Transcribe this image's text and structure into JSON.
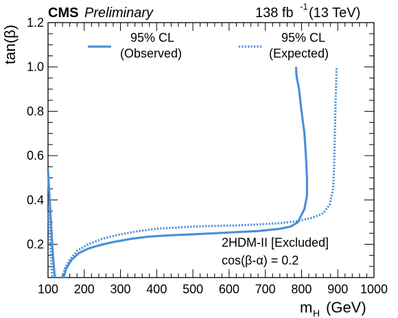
{
  "header": {
    "experiment": "CMS",
    "status": "Preliminary",
    "lumi_value": "138 fb",
    "lumi_exponent": "-1",
    "energy": "(13 TeV)"
  },
  "annotations": {
    "model": "2HDM-II [Excluded]",
    "coupling": "cos(β-α) = 0.2"
  },
  "chart_data": {
    "type": "line",
    "xlabel": "m",
    "xlabel_sub": "H",
    "xlabel_unit": "(GeV)",
    "ylabel": "tan(β)",
    "xlim": [
      100,
      1000
    ],
    "ylim": [
      0.05,
      1.2
    ],
    "x_ticks": [
      100,
      200,
      300,
      400,
      500,
      600,
      700,
      800,
      900,
      1000
    ],
    "y_ticks": [
      0.2,
      0.4,
      0.6,
      0.8,
      1.0,
      1.2
    ],
    "y_tick_labels": [
      "0.2",
      "0.4",
      "0.6",
      "0.8",
      "1.0",
      "1.2"
    ],
    "grid": false,
    "legend_position": "top",
    "colors": {
      "line": "#4a90d9"
    },
    "series": [
      {
        "name": "95% CL (Observed)",
        "style": "solid",
        "segments": [
          [
            [
              100,
              0.53
            ],
            [
              104,
              0.42
            ],
            [
              108,
              0.3
            ],
            [
              112,
              0.19
            ],
            [
              116,
              0.1
            ],
            [
              119,
              0.05
            ]
          ],
          [
            [
              143,
              0.05
            ],
            [
              150,
              0.09
            ],
            [
              165,
              0.13
            ],
            [
              185,
              0.16
            ],
            [
              210,
              0.18
            ],
            [
              240,
              0.195
            ],
            [
              280,
              0.21
            ],
            [
              330,
              0.225
            ],
            [
              380,
              0.235
            ],
            [
              430,
              0.24
            ],
            [
              500,
              0.245
            ],
            [
              560,
              0.25
            ],
            [
              620,
              0.255
            ],
            [
              680,
              0.26
            ],
            [
              740,
              0.27
            ],
            [
              770,
              0.28
            ],
            [
              790,
              0.3
            ],
            [
              808,
              0.36
            ],
            [
              815,
              0.42
            ],
            [
              815,
              0.5
            ],
            [
              812,
              0.6
            ],
            [
              808,
              0.7
            ],
            [
              800,
              0.8
            ],
            [
              793,
              0.9
            ],
            [
              786,
              0.96
            ],
            [
              785,
              1.0
            ]
          ]
        ]
      },
      {
        "name": "95% CL (Expected)",
        "style": "dotted",
        "segments": [
          [
            [
              100,
              0.36
            ],
            [
              103,
              0.28
            ],
            [
              106,
              0.2
            ],
            [
              109,
              0.12
            ],
            [
              112,
              0.05
            ]
          ],
          [
            [
              140,
              0.05
            ],
            [
              146,
              0.09
            ],
            [
              160,
              0.13
            ],
            [
              180,
              0.17
            ],
            [
              210,
              0.2
            ],
            [
              250,
              0.225
            ],
            [
              300,
              0.245
            ],
            [
              350,
              0.26
            ],
            [
              400,
              0.27
            ],
            [
              450,
              0.275
            ],
            [
              500,
              0.28
            ],
            [
              560,
              0.283
            ],
            [
              620,
              0.285
            ],
            [
              680,
              0.29
            ],
            [
              740,
              0.295
            ],
            [
              790,
              0.305
            ],
            [
              830,
              0.32
            ],
            [
              860,
              0.34
            ],
            [
              878,
              0.38
            ],
            [
              887,
              0.45
            ],
            [
              890,
              0.55
            ],
            [
              892,
              0.7
            ],
            [
              894,
              0.85
            ],
            [
              897,
              1.0
            ]
          ]
        ]
      }
    ]
  }
}
